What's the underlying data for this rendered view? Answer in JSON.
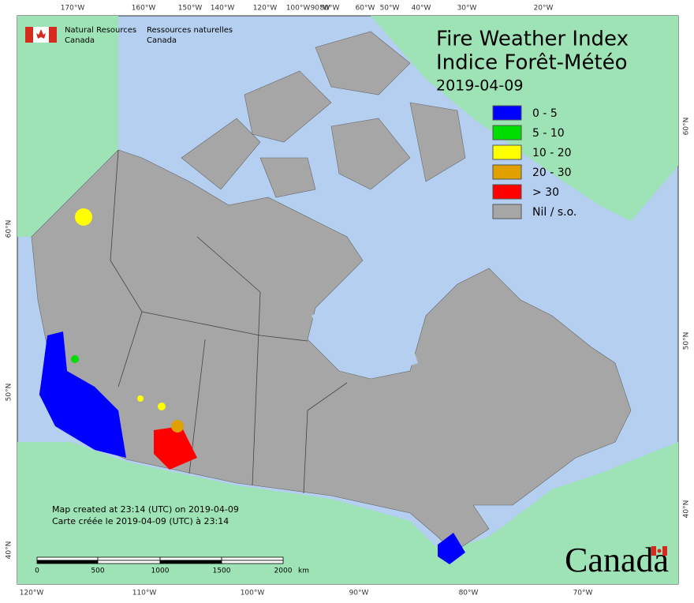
{
  "header": {
    "title_en": "Fire Weather Index",
    "title_fr": "Indice Forêt-Météo",
    "date": "2019-04-09"
  },
  "agency": {
    "en": [
      "Natural Resources",
      "Canada"
    ],
    "fr": [
      "Ressources naturelles",
      "Canada"
    ]
  },
  "legend": [
    {
      "label": "0 - 5",
      "color": "#0000ff"
    },
    {
      "label": "5 - 10",
      "color": "#00dd00"
    },
    {
      "label": "10 - 20",
      "color": "#ffff00"
    },
    {
      "label": "20 - 30",
      "color": "#e0a000"
    },
    {
      "label": "> 30",
      "color": "#ff0000"
    },
    {
      "label": "Nil / s.o.",
      "color": "#a6a6a6"
    }
  ],
  "graticule": {
    "top": [
      "170°W",
      "160°W",
      "150°W",
      "140°W",
      "120°W",
      "100°W",
      "90°W",
      "80°W",
      "60°W",
      "50°W",
      "40°W",
      "30°W",
      "20°W"
    ],
    "bottom": [
      "120°W",
      "110°W",
      "100°W",
      "90°W",
      "80°W",
      "70°W"
    ],
    "left": [
      "60°N",
      "50°N",
      "40°N"
    ],
    "right": [
      "60°N",
      "50°N",
      "40°N"
    ]
  },
  "credits": [
    "Map created at 23:14 (UTC) on 2019-04-09",
    "Carte créée le 2019-04-09 (UTC) à 23:14"
  ],
  "scale_bar": {
    "labels": [
      "0",
      "500",
      "1000",
      "1500",
      "2000"
    ],
    "unit": "km"
  },
  "wordmark": "Canada"
}
